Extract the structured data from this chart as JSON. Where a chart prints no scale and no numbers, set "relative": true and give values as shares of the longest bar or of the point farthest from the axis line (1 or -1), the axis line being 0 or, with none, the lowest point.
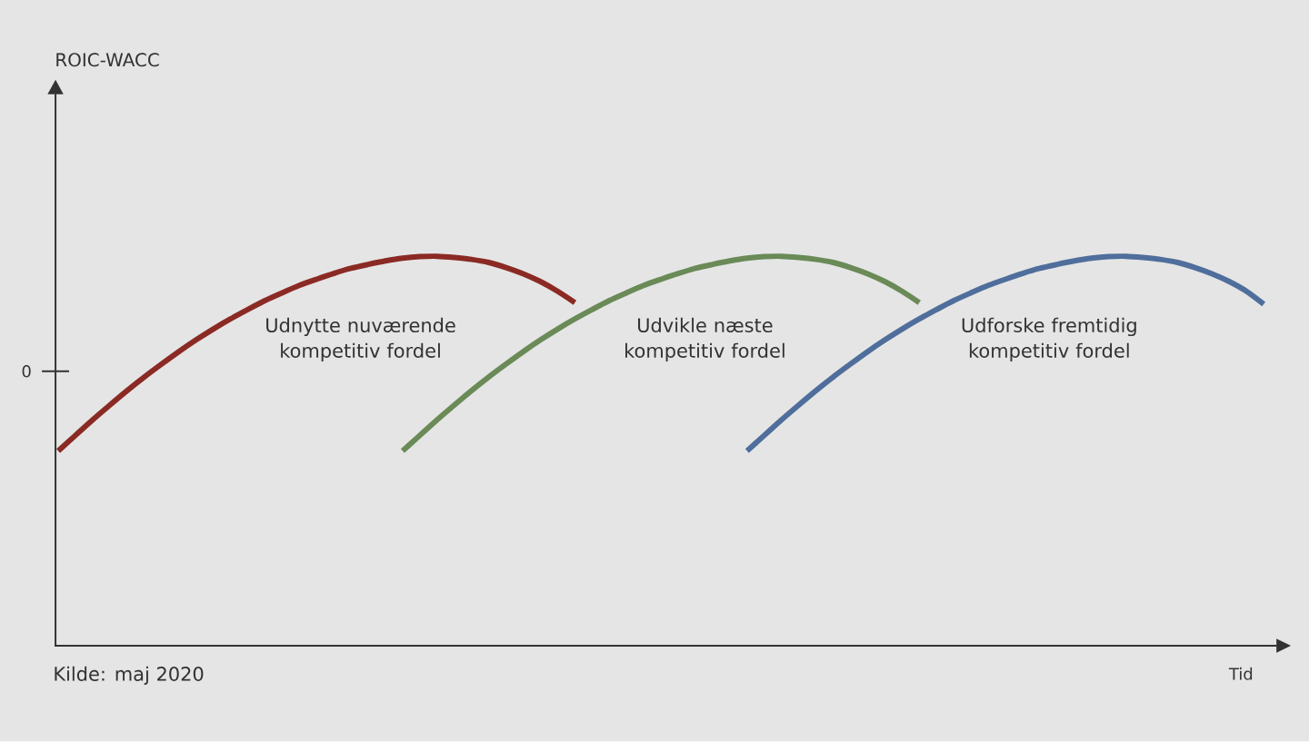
{
  "chart_data": {
    "type": "line",
    "relative": true,
    "xlabel": "Tid",
    "annotations": [
      "ROIC-WACC",
      "0",
      "Kilde: maj 2020"
    ],
    "categories": [
      null,
      null,
      null,
      null,
      null,
      null,
      null,
      null,
      null,
      null,
      null,
      null,
      null,
      null,
      null,
      null,
      null,
      null,
      null,
      null,
      null,
      null,
      null,
      null,
      null,
      null,
      null,
      null,
      null,
      null,
      null,
      null,
      null,
      null,
      null,
      null,
      null,
      null,
      null,
      null,
      null,
      null,
      null,
      null,
      null,
      null,
      null,
      null,
      null,
      null,
      null,
      null,
      null,
      null,
      null,
      null,
      null,
      null,
      null,
      null,
      null,
      null,
      null,
      null,
      null,
      null,
      null,
      null,
      null,
      null,
      null
    ],
    "series": [
      {
        "name": "Udnytte nuværende kompetitiv fordel",
        "color": "#8b2a24",
        "values": [
          0.5,
          0.54,
          0.58,
          0.618,
          0.655,
          0.69,
          0.723,
          0.755,
          0.785,
          0.813,
          0.839,
          0.863,
          0.886,
          0.906,
          0.925,
          0.941,
          0.956,
          0.969,
          0.979,
          0.988,
          0.995,
          0.999,
          1,
          0.997,
          0.992,
          0.984,
          0.971,
          0.955,
          0.935,
          0.91,
          0.881,
          null,
          null,
          null,
          null,
          null,
          null,
          null,
          null,
          null,
          null,
          null,
          null,
          null,
          null,
          null,
          null,
          null,
          null,
          null,
          null,
          null,
          null,
          null,
          null,
          null,
          null,
          null,
          null,
          null,
          null,
          null,
          null,
          null,
          null,
          null,
          null,
          null,
          null,
          null,
          null
        ]
      },
      {
        "name": "Udvikle næste kompetitiv fordel",
        "color": "#6a8a57",
        "values": [
          null,
          null,
          null,
          null,
          null,
          null,
          null,
          null,
          null,
          null,
          null,
          null,
          null,
          null,
          null,
          null,
          null,
          null,
          null,
          null,
          0.5,
          0.54,
          0.58,
          0.618,
          0.655,
          0.69,
          0.723,
          0.755,
          0.785,
          0.813,
          0.839,
          0.863,
          0.886,
          0.906,
          0.925,
          0.941,
          0.956,
          0.969,
          0.979,
          0.988,
          0.995,
          0.999,
          1,
          0.997,
          0.992,
          0.984,
          0.971,
          0.955,
          0.935,
          0.91,
          0.881,
          null,
          null,
          null,
          null,
          null,
          null,
          null,
          null,
          null,
          null,
          null,
          null,
          null,
          null,
          null,
          null,
          null,
          null,
          null,
          null
        ]
      },
      {
        "name": "Udforske fremtidig kompetitiv fordel",
        "color": "#4f6e9c",
        "values": [
          null,
          null,
          null,
          null,
          null,
          null,
          null,
          null,
          null,
          null,
          null,
          null,
          null,
          null,
          null,
          null,
          null,
          null,
          null,
          null,
          null,
          null,
          null,
          null,
          null,
          null,
          null,
          null,
          null,
          null,
          null,
          null,
          null,
          null,
          null,
          null,
          null,
          null,
          null,
          null,
          0.5,
          0.54,
          0.58,
          0.618,
          0.655,
          0.69,
          0.723,
          0.755,
          0.785,
          0.813,
          0.839,
          0.863,
          0.886,
          0.906,
          0.925,
          0.941,
          0.956,
          0.969,
          0.979,
          0.988,
          0.995,
          0.999,
          1,
          0.997,
          0.992,
          0.984,
          0.971,
          0.955,
          0.935,
          0.91,
          0.877
        ]
      }
    ]
  }
}
